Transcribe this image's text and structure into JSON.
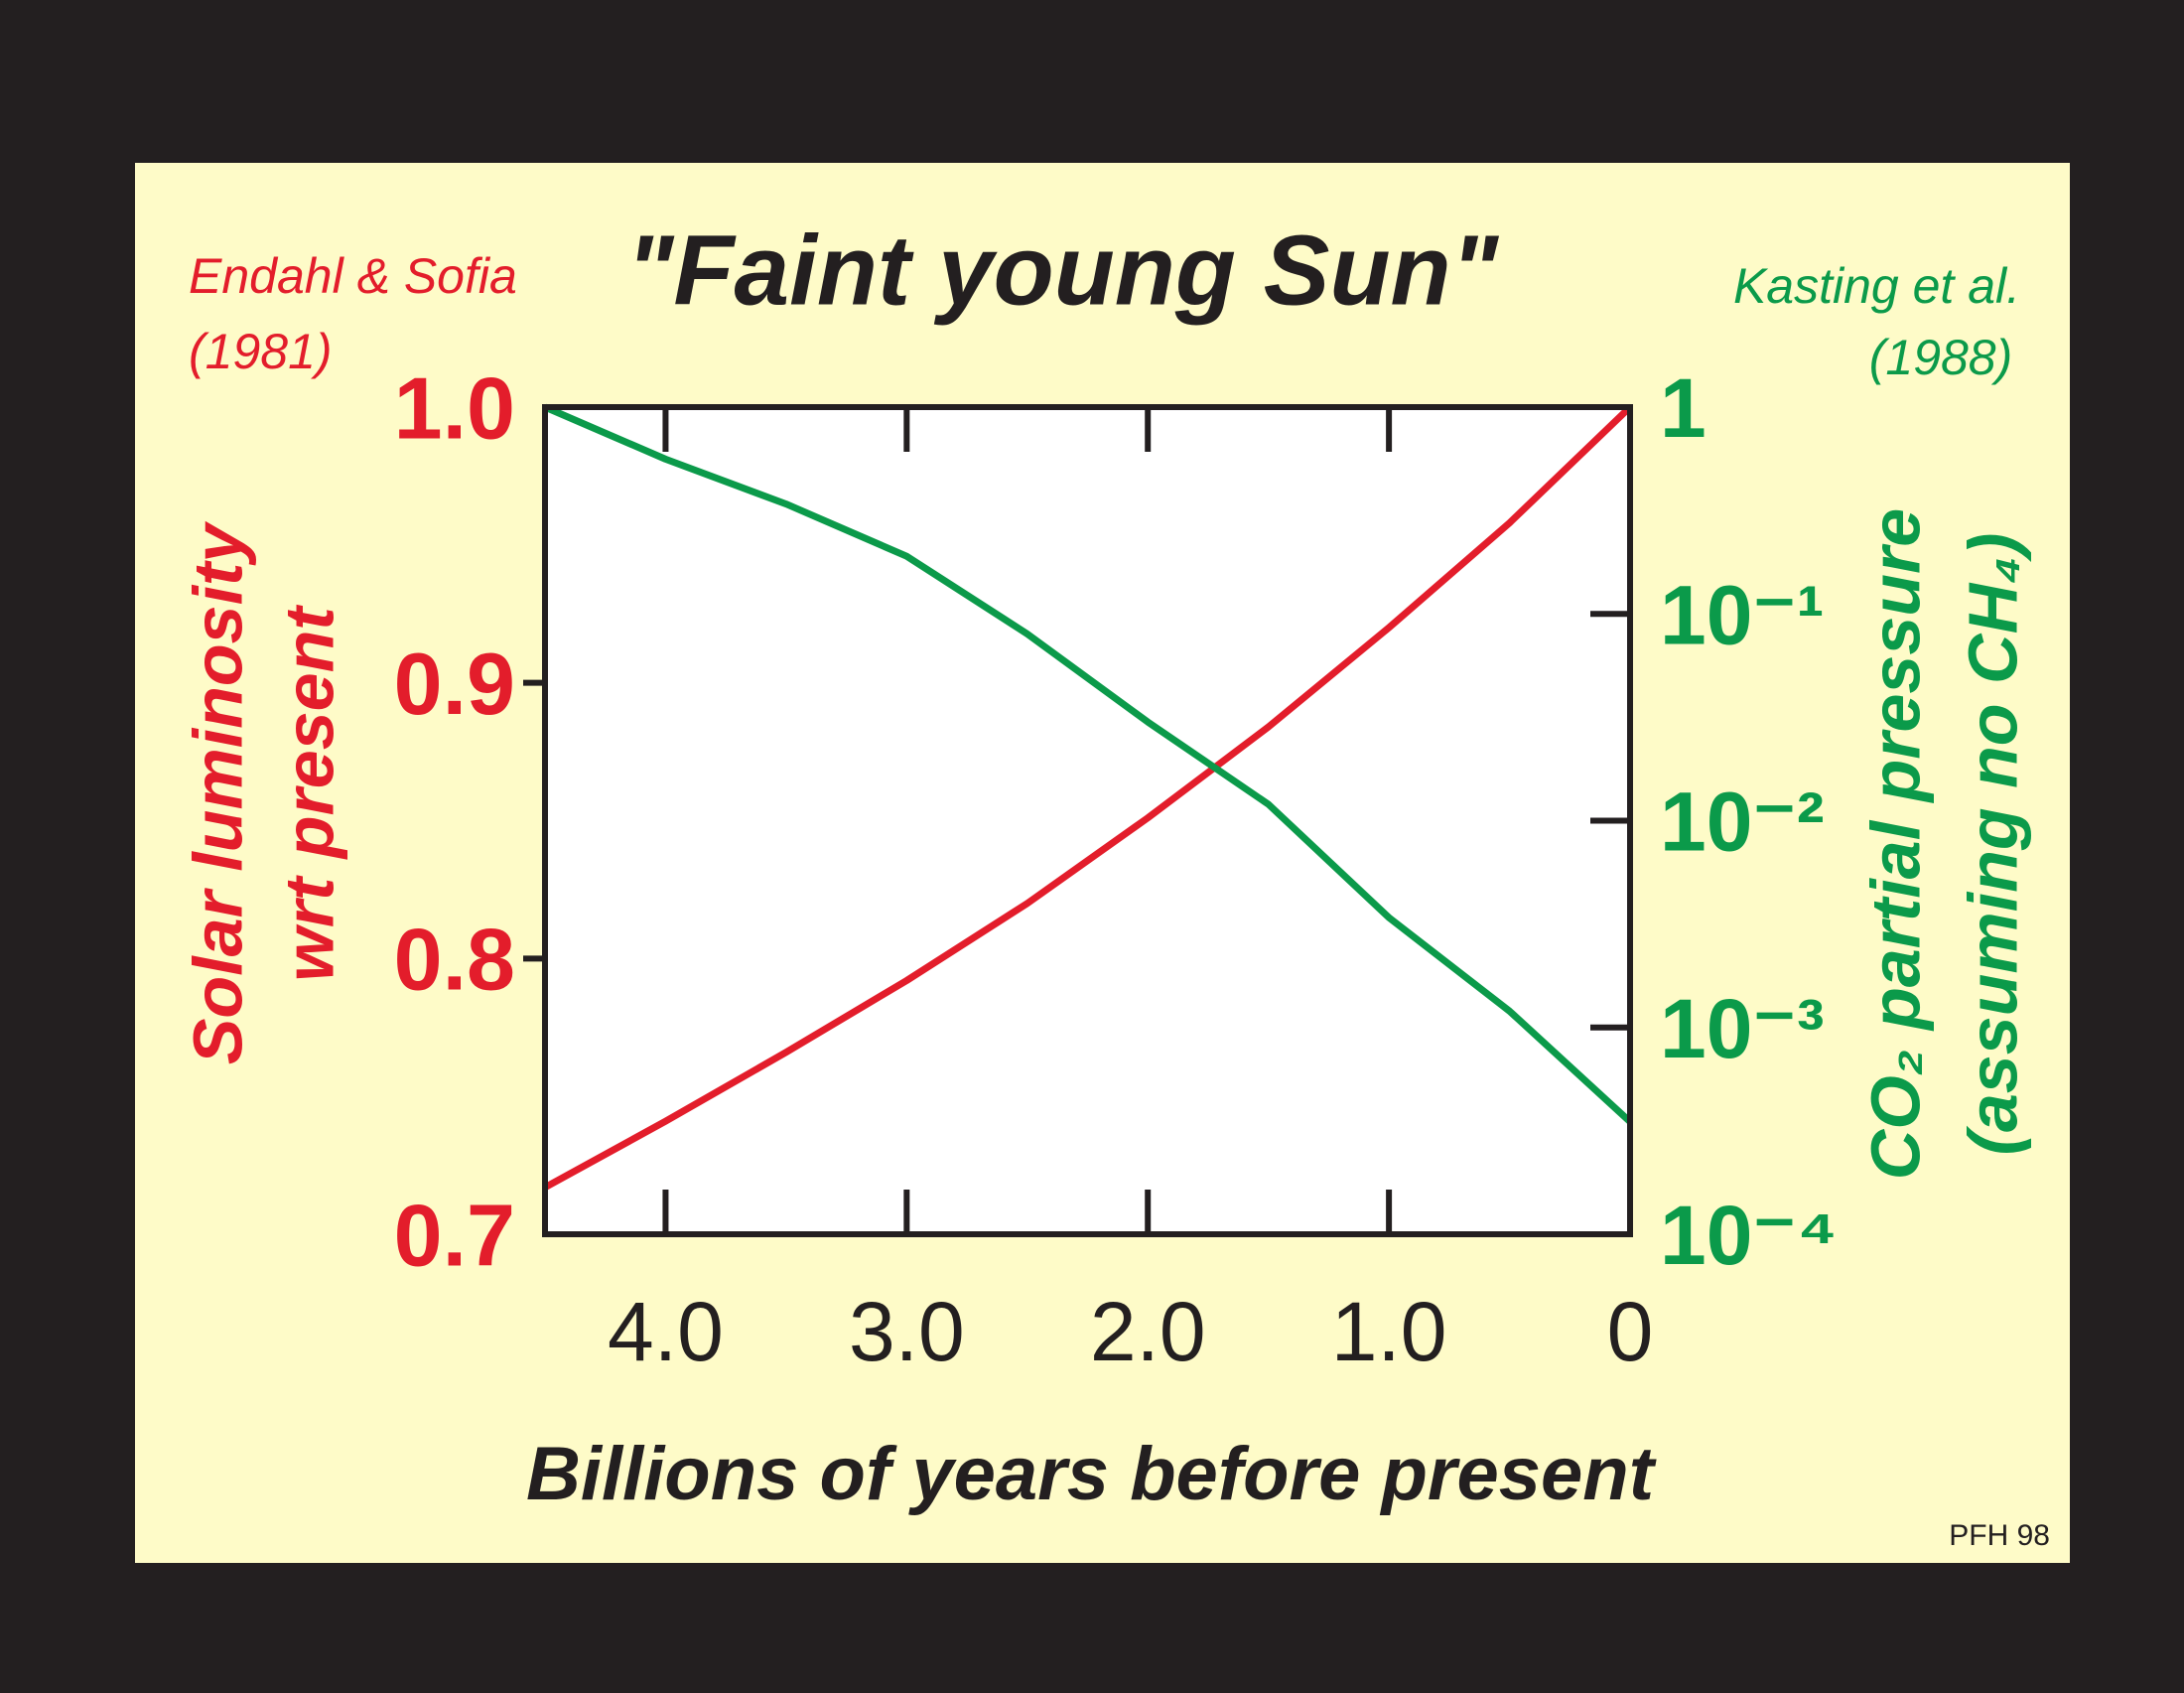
{
  "chart_data": {
    "type": "line",
    "title": "\"Faint young Sun\"",
    "xlabel": "Billions of years before present",
    "ylabel": [
      "Solar luminosity",
      "wrt present"
    ],
    "y2label": [
      "CO₂ partial pressure",
      "(assuming no CH₄)"
    ],
    "footnote": "PFH 98",
    "x": [
      4.5,
      4.0,
      3.5,
      3.0,
      2.5,
      2.0,
      1.5,
      1.0,
      0.5,
      0
    ],
    "xlim": [
      4.5,
      0
    ],
    "xticks": [
      {
        "value": 4,
        "label": "4.0"
      },
      {
        "value": 3,
        "label": "3.0"
      },
      {
        "value": 2,
        "label": "2.0"
      },
      {
        "value": 1,
        "label": "1.0"
      },
      0
    ],
    "ylim": [
      0.7,
      1.0
    ],
    "yticks": [
      0.7,
      0.8,
      0.9,
      {
        "value": 1.0,
        "label": "1.0"
      }
    ],
    "y2lim": [
      0.0001,
      1
    ],
    "y2log": true,
    "y2ticks": [
      {
        "value": 0.0001,
        "label": "10⁻⁴"
      },
      {
        "value": 0.001,
        "label": "10⁻³"
      },
      {
        "value": 0.01,
        "label": "10⁻²"
      },
      {
        "value": 0.1,
        "label": "10⁻¹"
      },
      1
    ],
    "series": [
      {
        "source": [
          "Endahl & Sofia",
          "(1981)"
        ],
        "color": "#e31d2b",
        "axis": "y",
        "values": [
          0.717,
          0.741,
          0.766,
          0.792,
          0.82,
          0.851,
          0.884,
          0.92,
          0.958,
          1.0
        ]
      },
      {
        "source": [
          "Kasting et al.",
          "(1988)"
        ],
        "color": "#0b9a4a",
        "axis": "y2",
        "values": [
          1,
          0.56,
          0.34,
          0.19,
          0.08,
          0.03,
          0.012,
          0.0034,
          0.0012,
          0.00035
        ]
      }
    ]
  }
}
